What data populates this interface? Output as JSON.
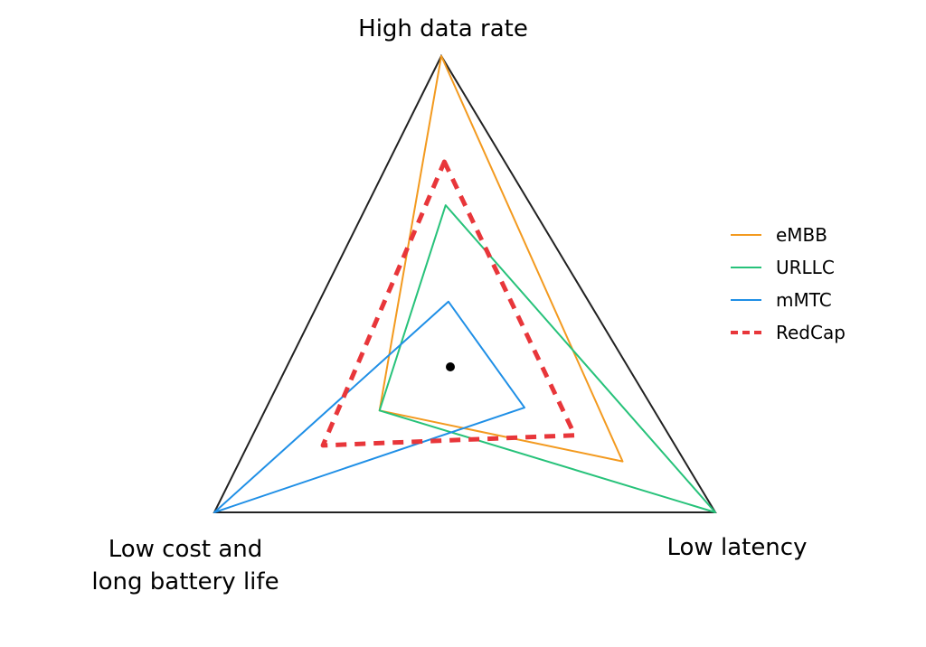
{
  "chart_data": {
    "type": "radar",
    "axes": [
      "High data rate",
      "Low latency",
      "Low cost and\nlong battery life"
    ],
    "range": [
      0,
      1
    ],
    "series": [
      {
        "name": "eMBB",
        "values": [
          1.0,
          0.65,
          0.3
        ],
        "color": "#f39a1f",
        "style": "solid"
      },
      {
        "name": "URLLC",
        "values": [
          0.52,
          1.0,
          0.3
        ],
        "color": "#27c27a",
        "style": "solid"
      },
      {
        "name": "mMTC",
        "values": [
          0.21,
          0.28,
          1.0
        ],
        "color": "#1f8fe6",
        "style": "solid"
      },
      {
        "name": "RedCap",
        "values": [
          0.66,
          0.47,
          0.54
        ],
        "color": "#e8363a",
        "style": "dashed"
      }
    ]
  }
}
